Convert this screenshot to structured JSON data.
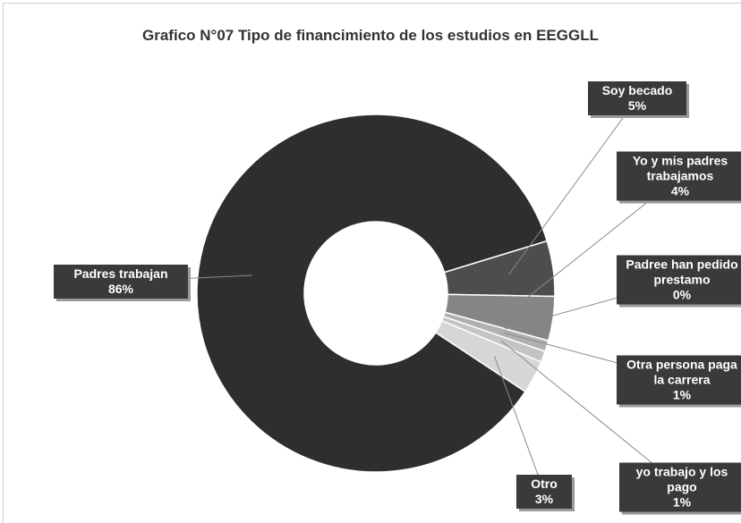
{
  "chart_data": {
    "type": "donut",
    "title": "Grafico N°07 Tipo de financimiento de los estudios en EEGGLL",
    "categories": [
      "Soy becado",
      "Yo y mis padres trabajamos",
      "Padree han pedido prestamo",
      "Otra persona paga la carrera",
      "yo trabajo y los pago",
      "Otro",
      "Padres trabajan"
    ],
    "values": [
      5,
      4,
      0,
      1,
      1,
      3,
      86
    ],
    "value_labels": [
      "5%",
      "4%",
      "0%",
      "1%",
      "1%",
      "3%",
      "86%"
    ],
    "colors": [
      "#4d4d4d",
      "#858585",
      "#9c9c9c",
      "#b0b0b0",
      "#c4c4c4",
      "#d6d6d6",
      "#2e2e2e"
    ]
  }
}
